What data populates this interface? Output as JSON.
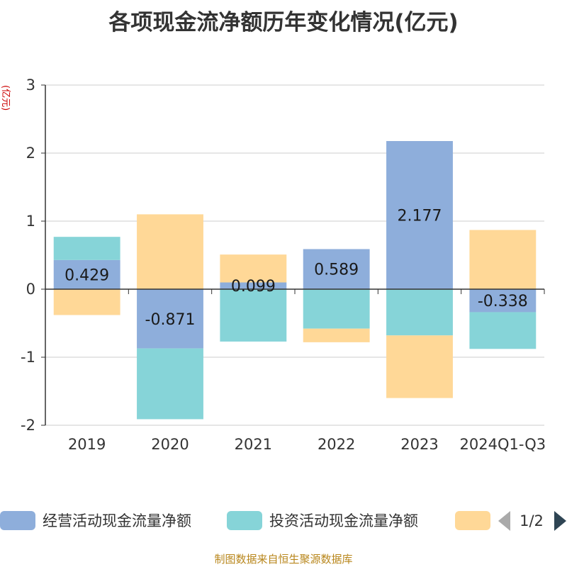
{
  "chart_data": {
    "type": "bar",
    "stacked": true,
    "title": "各项现金流净额历年变化情况(亿元)",
    "ylabel": "(亿元)",
    "xlabel": "",
    "ylim": [
      -2,
      3
    ],
    "yticks": [
      -2,
      -1,
      0,
      1,
      2,
      3
    ],
    "grid": true,
    "categories": [
      "2019",
      "2020",
      "2021",
      "2022",
      "2023",
      "2024Q1-Q3"
    ],
    "series": [
      {
        "name": "经营活动现金流量净额",
        "color": "#8eaedb",
        "values": [
          0.429,
          -0.871,
          0.099,
          0.589,
          2.177,
          -0.338
        ],
        "labels": [
          "0.429",
          "-0.871",
          "0.099",
          "0.589",
          "2.177",
          "-0.338"
        ]
      },
      {
        "name": "投资活动现金流量净额",
        "color": "#86d4d8",
        "values": [
          0.34,
          -1.04,
          -0.77,
          -0.58,
          -0.68,
          -0.54
        ]
      },
      {
        "name": "",
        "color": "#ffd897",
        "values": [
          -0.38,
          1.1,
          0.41,
          -0.2,
          -0.92,
          0.87
        ]
      }
    ],
    "legend": {
      "position": "bottom",
      "page": "1/2"
    }
  },
  "source": "制图数据来自恒生聚源数据库"
}
